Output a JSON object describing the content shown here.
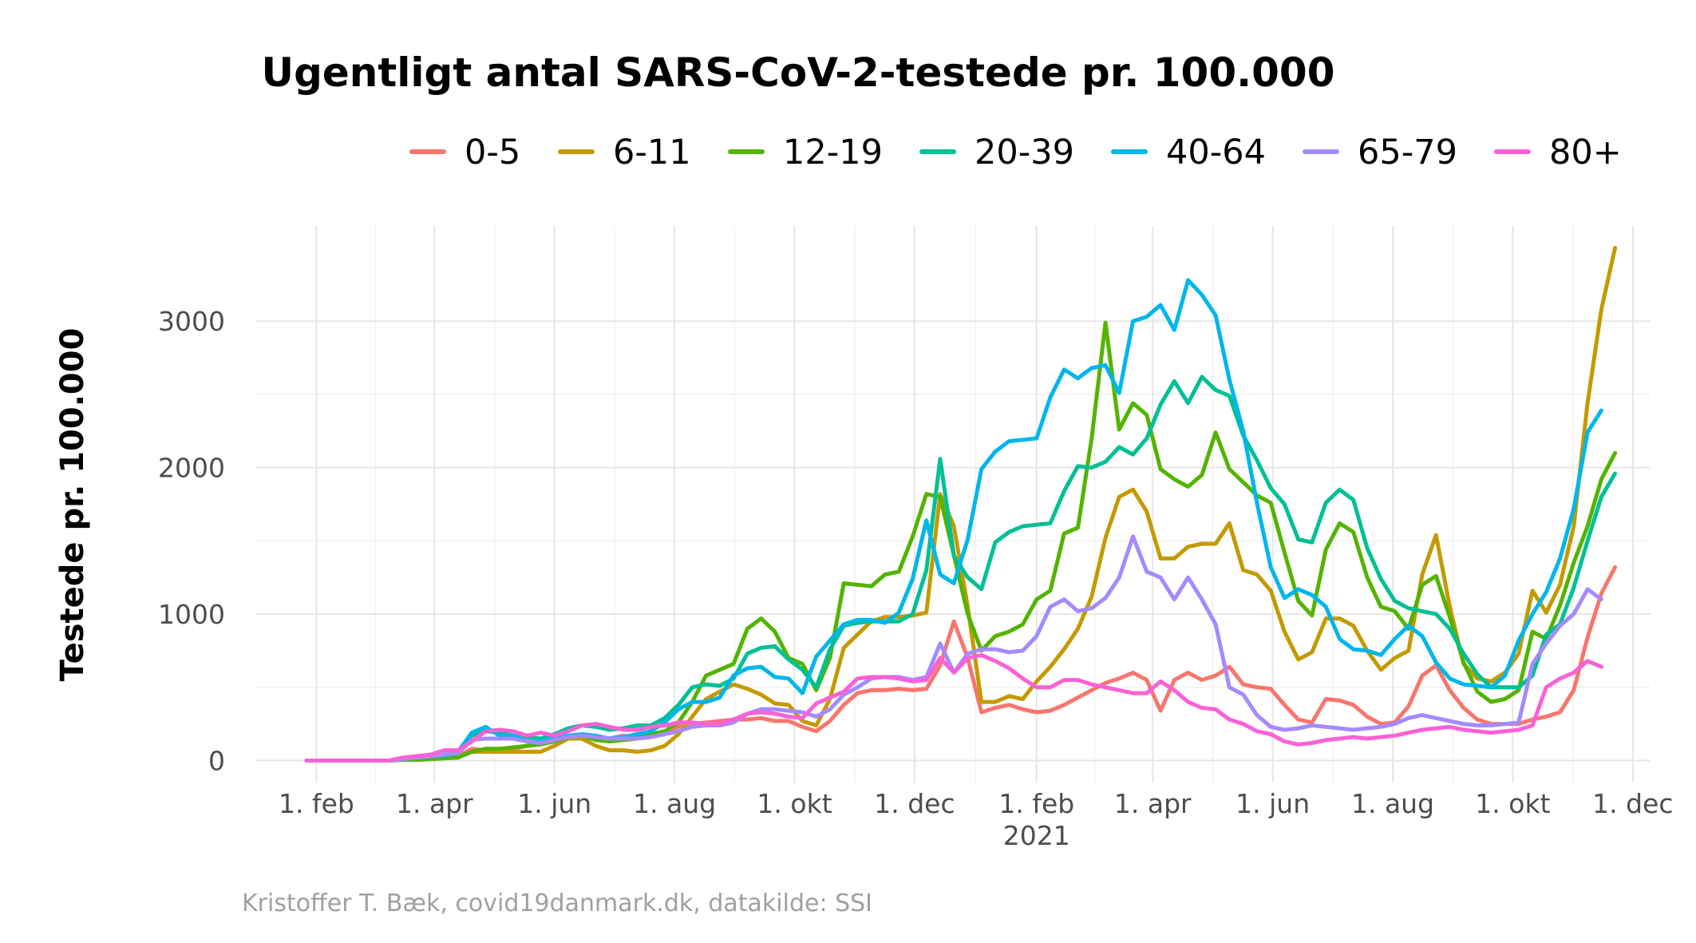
{
  "chart_data": {
    "type": "line",
    "title": "Ugentligt antal SARS-CoV-2-testede pr. 100.000",
    "ylabel": "Testede pr. 100.000",
    "xlabel": "",
    "caption": "Kristoffer T. Bæk, covid19danmark.dk, datakilde: SSI",
    "legend_position": "top",
    "grid": true,
    "x_start": "2020-01-27",
    "x_step_days": 7,
    "xlim": [
      "2020-01-01",
      "2021-12-10"
    ],
    "ylim": [
      -150,
      3650
    ],
    "y_ticks": [
      0,
      1000,
      2000,
      3000
    ],
    "x_ticks": [
      {
        "date": "2020-02-01",
        "label": "1. feb",
        "sub": ""
      },
      {
        "date": "2020-04-01",
        "label": "1. apr",
        "sub": ""
      },
      {
        "date": "2020-06-01",
        "label": "1. jun",
        "sub": ""
      },
      {
        "date": "2020-08-01",
        "label": "1. aug",
        "sub": ""
      },
      {
        "date": "2020-10-01",
        "label": "1. okt",
        "sub": ""
      },
      {
        "date": "2020-12-01",
        "label": "1. dec",
        "sub": ""
      },
      {
        "date": "2021-02-01",
        "label": "1. feb",
        "sub": "2021"
      },
      {
        "date": "2021-04-01",
        "label": "1. apr",
        "sub": ""
      },
      {
        "date": "2021-06-01",
        "label": "1. jun",
        "sub": ""
      },
      {
        "date": "2021-08-01",
        "label": "1. aug",
        "sub": ""
      },
      {
        "date": "2021-10-01",
        "label": "1. okt",
        "sub": ""
      },
      {
        "date": "2021-12-01",
        "label": "1. dec",
        "sub": ""
      }
    ],
    "series": [
      {
        "name": "0-5",
        "color": "#F8766D",
        "values": [
          0,
          0,
          0,
          0,
          0,
          0,
          0,
          10,
          20,
          30,
          30,
          30,
          80,
          70,
          70,
          80,
          100,
          120,
          130,
          150,
          170,
          150,
          150,
          170,
          160,
          180,
          200,
          230,
          250,
          260,
          270,
          280,
          280,
          290,
          270,
          270,
          230,
          200,
          270,
          380,
          460,
          480,
          480,
          490,
          480,
          490,
          650,
          950,
          700,
          330,
          360,
          380,
          350,
          330,
          340,
          380,
          430,
          480,
          530,
          560,
          600,
          550,
          340,
          550,
          600,
          550,
          580,
          640,
          520,
          500,
          490,
          380,
          280,
          260,
          420,
          410,
          380,
          300,
          250,
          260,
          370,
          580,
          650,
          480,
          360,
          280,
          250,
          250,
          250,
          280,
          300,
          330,
          480,
          840,
          1140,
          1320
        ]
      },
      {
        "name": "6-11",
        "color": "#C49A00",
        "values": [
          0,
          0,
          0,
          0,
          0,
          0,
          0,
          10,
          10,
          20,
          20,
          30,
          60,
          60,
          60,
          60,
          60,
          60,
          100,
          150,
          150,
          100,
          70,
          70,
          60,
          70,
          100,
          180,
          300,
          420,
          470,
          520,
          490,
          450,
          390,
          380,
          270,
          240,
          420,
          770,
          860,
          950,
          980,
          980,
          990,
          1010,
          1820,
          1600,
          1050,
          400,
          400,
          440,
          420,
          540,
          640,
          760,
          900,
          1120,
          1520,
          1800,
          1850,
          1700,
          1380,
          1380,
          1460,
          1480,
          1480,
          1620,
          1300,
          1270,
          1160,
          880,
          690,
          740,
          970,
          970,
          920,
          750,
          620,
          700,
          750,
          1270,
          1540,
          1050,
          660,
          560,
          540,
          600,
          730,
          1160,
          1010,
          1200,
          1600,
          2440,
          3080,
          3500
        ]
      },
      {
        "name": "12-19",
        "color": "#53B400",
        "values": [
          0,
          0,
          0,
          0,
          0,
          0,
          0,
          5,
          5,
          10,
          15,
          20,
          60,
          80,
          80,
          90,
          100,
          110,
          130,
          160,
          170,
          140,
          130,
          140,
          150,
          180,
          200,
          260,
          400,
          580,
          620,
          660,
          900,
          970,
          880,
          700,
          660,
          480,
          700,
          1210,
          1200,
          1190,
          1270,
          1290,
          1530,
          1820,
          1800,
          1400,
          1000,
          750,
          850,
          880,
          930,
          1100,
          1160,
          1550,
          1590,
          2200,
          2990,
          2260,
          2440,
          2360,
          1990,
          1920,
          1870,
          1950,
          2240,
          1990,
          1900,
          1810,
          1760,
          1420,
          1090,
          990,
          1440,
          1620,
          1560,
          1250,
          1050,
          1020,
          900,
          1200,
          1260,
          980,
          670,
          470,
          400,
          420,
          480,
          880,
          830,
          1060,
          1350,
          1600,
          1920,
          2100
        ]
      },
      {
        "name": "20-39",
        "color": "#00C094",
        "values": [
          0,
          0,
          0,
          0,
          0,
          0,
          0,
          10,
          20,
          30,
          30,
          50,
          170,
          200,
          190,
          200,
          160,
          150,
          180,
          220,
          240,
          230,
          210,
          220,
          240,
          240,
          290,
          380,
          500,
          520,
          510,
          560,
          730,
          770,
          780,
          690,
          620,
          500,
          760,
          920,
          940,
          950,
          950,
          950,
          1000,
          1300,
          2060,
          1400,
          1250,
          1170,
          1490,
          1560,
          1600,
          1610,
          1620,
          1840,
          2010,
          2000,
          2040,
          2140,
          2090,
          2200,
          2430,
          2590,
          2440,
          2620,
          2530,
          2490,
          2220,
          2050,
          1860,
          1750,
          1510,
          1490,
          1760,
          1850,
          1780,
          1450,
          1240,
          1090,
          1040,
          1020,
          1000,
          900,
          730,
          590,
          500,
          500,
          500,
          580,
          860,
          930,
          1180,
          1500,
          1800,
          1960
        ]
      },
      {
        "name": "40-64",
        "color": "#00B6EB",
        "values": [
          0,
          0,
          0,
          0,
          0,
          0,
          0,
          10,
          20,
          30,
          40,
          60,
          190,
          230,
          170,
          170,
          130,
          130,
          160,
          170,
          180,
          170,
          150,
          160,
          180,
          200,
          260,
          350,
          400,
          400,
          430,
          580,
          630,
          640,
          570,
          560,
          460,
          710,
          820,
          930,
          960,
          960,
          940,
          1010,
          1240,
          1640,
          1270,
          1210,
          1510,
          1990,
          2110,
          2180,
          2190,
          2200,
          2480,
          2670,
          2610,
          2680,
          2700,
          2510,
          3000,
          3030,
          3110,
          2940,
          3280,
          3180,
          3040,
          2600,
          2250,
          1760,
          1320,
          1110,
          1170,
          1130,
          1050,
          830,
          760,
          750,
          720,
          830,
          920,
          850,
          670,
          560,
          520,
          510,
          500,
          580,
          820,
          1000,
          1150,
          1380,
          1720,
          2240,
          2390
        ]
      },
      {
        "name": "65-79",
        "color": "#A58AFF",
        "values": [
          0,
          0,
          0,
          0,
          0,
          0,
          0,
          10,
          20,
          30,
          40,
          50,
          140,
          150,
          150,
          150,
          130,
          120,
          140,
          160,
          170,
          160,
          150,
          150,
          150,
          160,
          180,
          200,
          230,
          240,
          240,
          260,
          320,
          350,
          350,
          340,
          330,
          300,
          350,
          450,
          500,
          560,
          570,
          570,
          550,
          570,
          800,
          600,
          730,
          760,
          760,
          740,
          750,
          850,
          1050,
          1100,
          1020,
          1040,
          1110,
          1250,
          1530,
          1290,
          1250,
          1100,
          1250,
          1100,
          930,
          500,
          450,
          310,
          230,
          210,
          220,
          240,
          230,
          220,
          210,
          220,
          230,
          250,
          290,
          310,
          290,
          270,
          250,
          240,
          240,
          250,
          260,
          660,
          800,
          920,
          1000,
          1170,
          1100
        ]
      },
      {
        "name": "80+",
        "color": "#FB61D7",
        "values": [
          0,
          0,
          0,
          0,
          0,
          0,
          0,
          20,
          30,
          40,
          70,
          70,
          130,
          200,
          210,
          200,
          170,
          190,
          170,
          200,
          240,
          250,
          230,
          210,
          210,
          230,
          240,
          260,
          260,
          250,
          250,
          280,
          320,
          330,
          320,
          300,
          290,
          390,
          430,
          470,
          560,
          570,
          570,
          560,
          540,
          550,
          700,
          600,
          700,
          720,
          680,
          630,
          560,
          500,
          500,
          550,
          550,
          520,
          500,
          480,
          460,
          460,
          540,
          480,
          400,
          360,
          350,
          280,
          250,
          200,
          180,
          130,
          110,
          120,
          140,
          150,
          160,
          150,
          160,
          170,
          190,
          210,
          220,
          230,
          210,
          200,
          190,
          200,
          210,
          240,
          500,
          560,
          600,
          680,
          640
        ]
      }
    ]
  }
}
